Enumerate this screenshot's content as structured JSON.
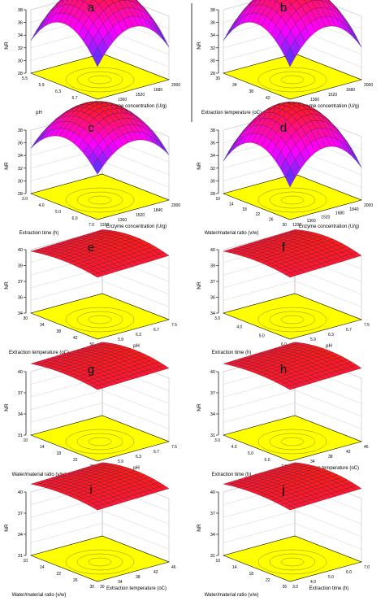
{
  "colors": {
    "surface_high": "#ff1a1a",
    "surface_low": "#3a3aff",
    "surface_mid": "#ff00ff",
    "base_plane": "#ffff00",
    "mesh_line": "#202020",
    "frame": "#000000"
  },
  "panels": [
    {
      "letter": "a",
      "zlabel": "NR",
      "xlabel": "pH",
      "ylabel": "Enzyme concentration (U/g)",
      "zticks": [
        "28",
        "30",
        "32",
        "34",
        "36",
        "38"
      ],
      "xticks": [
        "5.5",
        "5.9",
        "6.3",
        "6.7",
        "7.1"
      ],
      "yticks": [
        "1200",
        "1360",
        "1520",
        "1680",
        "2000"
      ]
    },
    {
      "letter": "b",
      "zlabel": "NR",
      "xlabel": "Extraction temperature (oC)",
      "ylabel": "Enzyme concentration (U/g)",
      "zticks": [
        "28",
        "30",
        "32",
        "34",
        "36",
        "38"
      ],
      "xticks": [
        "30",
        "34",
        "38",
        "42",
        "50"
      ],
      "yticks": [
        "1200",
        "1360",
        "1520",
        "1680",
        "2000"
      ]
    },
    {
      "letter": "c",
      "zlabel": "NR",
      "xlabel": "Extraction time (h)",
      "ylabel": "Enzyme concentration (U/g)",
      "zticks": [
        "28",
        "30",
        "32",
        "34",
        "36",
        "38"
      ],
      "xticks": [
        "3.0",
        "4.0",
        "5.0",
        "6.0",
        "7.0"
      ],
      "yticks": [
        "1200",
        "1360",
        "1520",
        "1840",
        "2000"
      ]
    },
    {
      "letter": "d",
      "zlabel": "NR",
      "xlabel": "Water/material ratio (v/w)",
      "ylabel": "Enzyme concentration (U/g)",
      "zticks": [
        "28",
        "30",
        "32",
        "34",
        "36",
        "38"
      ],
      "xticks": [
        "10",
        "14",
        "18",
        "22",
        "26",
        "30"
      ],
      "yticks": [
        "1200",
        "1360",
        "1520",
        "1680",
        "1840",
        "2000"
      ]
    },
    {
      "letter": "e",
      "zlabel": "NR",
      "xlabel": "Extraction temperature (oC)",
      "ylabel": "pH",
      "zticks": [
        "34",
        "36",
        "37",
        "39",
        "40"
      ],
      "xticks": [
        "30",
        "34",
        "38",
        "42",
        "50"
      ],
      "yticks": [
        "5.5",
        "5.9",
        "6.3",
        "6.7",
        "7.5"
      ]
    },
    {
      "letter": "f",
      "zlabel": "NR",
      "xlabel": "Extraction time (h)",
      "ylabel": "pH",
      "zticks": [
        "34",
        "36",
        "37",
        "39",
        "40"
      ],
      "xticks": [
        "3.0",
        "4.0",
        "5.0",
        "6.0"
      ],
      "yticks": [
        "5.5",
        "5.9",
        "6.3",
        "6.7",
        "7.5"
      ]
    },
    {
      "letter": "g",
      "zlabel": "NR",
      "xlabel": "Water/material ratio (v/w)",
      "ylabel": "pH",
      "zticks": [
        "31",
        "34",
        "37",
        "40"
      ],
      "xticks": [
        "10",
        "14",
        "18",
        "22",
        "30"
      ],
      "yticks": [
        "5.5",
        "5.9",
        "6.3",
        "6.7",
        "7.5"
      ]
    },
    {
      "letter": "h",
      "zlabel": "NR",
      "xlabel": "Extraction time (h)",
      "ylabel": "Extraction temperature (oC)",
      "zticks": [
        "31",
        "34",
        "37",
        "40"
      ],
      "xticks": [
        "3.0",
        "4.0",
        "5.0",
        "6.0",
        "7.0"
      ],
      "yticks": [
        "30",
        "34",
        "38",
        "42",
        "46"
      ]
    },
    {
      "letter": "i",
      "zlabel": "NR",
      "xlabel": "Water/material ratio (v/w)",
      "ylabel": "Extraction temperature (oC)",
      "zticks": [
        "31",
        "34",
        "37",
        "40"
      ],
      "xticks": [
        "10",
        "14",
        "22",
        "26",
        "30"
      ],
      "yticks": [
        "30",
        "34",
        "38",
        "42",
        "46"
      ]
    },
    {
      "letter": "j",
      "zlabel": "NR",
      "xlabel": "Water/material ratio (v/w)",
      "ylabel": "Extraction time (h)",
      "zticks": [
        "31",
        "34",
        "37",
        "40"
      ],
      "xticks": [
        "10",
        "14",
        "18",
        "22",
        "26"
      ],
      "yticks": [
        "3.0",
        "4.0",
        "5.0",
        "6.0",
        "7.0"
      ]
    }
  ],
  "chart_data": [
    {
      "type": "surface",
      "panel": "a",
      "zlabel": "NR",
      "xlabel": "pH",
      "ylabel": "Enzyme concentration (U/g)",
      "xlim": [
        5.5,
        7.1
      ],
      "ylim": [
        1200,
        2000
      ],
      "zlim": [
        28,
        38
      ],
      "z_min": 28,
      "z_max": 37.5,
      "optimum": [
        6.3,
        1600
      ],
      "shape": "dome"
    },
    {
      "type": "surface",
      "panel": "b",
      "zlabel": "NR",
      "xlabel": "Extraction temperature (oC)",
      "ylabel": "Enzyme concentration (U/g)",
      "xlim": [
        30,
        50
      ],
      "ylim": [
        1200,
        2000
      ],
      "zlim": [
        28,
        38
      ],
      "z_min": 28,
      "z_max": 37.5,
      "optimum": [
        40,
        1600
      ],
      "shape": "dome"
    },
    {
      "type": "surface",
      "panel": "c",
      "zlabel": "NR",
      "xlabel": "Extraction time (h)",
      "ylabel": "Enzyme concentration (U/g)",
      "xlim": [
        3,
        7
      ],
      "ylim": [
        1200,
        2000
      ],
      "zlim": [
        28,
        38
      ],
      "z_min": 30,
      "z_max": 37.5,
      "optimum": [
        5,
        1600
      ],
      "shape": "dome"
    },
    {
      "type": "surface",
      "panel": "d",
      "zlabel": "NR",
      "xlabel": "Water/material ratio (v/w)",
      "ylabel": "Enzyme concentration (U/g)",
      "xlim": [
        10,
        30
      ],
      "ylim": [
        1200,
        2000
      ],
      "zlim": [
        28,
        38
      ],
      "z_min": 28,
      "z_max": 37.5,
      "optimum": [
        20,
        1600
      ],
      "shape": "dome"
    },
    {
      "type": "surface",
      "panel": "e",
      "zlabel": "NR",
      "xlabel": "Extraction temperature (oC)",
      "ylabel": "pH",
      "xlim": [
        30,
        50
      ],
      "ylim": [
        5.5,
        7.5
      ],
      "zlim": [
        34,
        40
      ],
      "z_min": 36,
      "z_max": 37.5,
      "shape": "near-flat"
    },
    {
      "type": "surface",
      "panel": "f",
      "zlabel": "NR",
      "xlabel": "Extraction time (h)",
      "ylabel": "pH",
      "xlim": [
        3,
        7
      ],
      "ylim": [
        5.5,
        7.5
      ],
      "zlim": [
        34,
        40
      ],
      "z_min": 36,
      "z_max": 37.5,
      "shape": "near-flat"
    },
    {
      "type": "surface",
      "panel": "g",
      "zlabel": "NR",
      "xlabel": "Water/material ratio (v/w)",
      "ylabel": "pH",
      "xlim": [
        10,
        30
      ],
      "ylim": [
        5.5,
        7.5
      ],
      "zlim": [
        31,
        40
      ],
      "z_min": 35.5,
      "z_max": 37.5,
      "shape": "near-flat"
    },
    {
      "type": "surface",
      "panel": "h",
      "zlabel": "NR",
      "xlabel": "Extraction time (h)",
      "ylabel": "Extraction temperature (oC)",
      "xlim": [
        3,
        7
      ],
      "ylim": [
        30,
        50
      ],
      "zlim": [
        31,
        40
      ],
      "z_min": 35.5,
      "z_max": 37.5,
      "shape": "near-flat"
    },
    {
      "type": "surface",
      "panel": "i",
      "zlabel": "NR",
      "xlabel": "Water/material ratio (v/w)",
      "ylabel": "Extraction temperature (oC)",
      "xlim": [
        10,
        30
      ],
      "ylim": [
        30,
        50
      ],
      "zlim": [
        31,
        40
      ],
      "z_min": 35.5,
      "z_max": 37.5,
      "shape": "near-flat"
    },
    {
      "type": "surface",
      "panel": "j",
      "zlabel": "NR",
      "xlabel": "Water/material ratio (v/w)",
      "ylabel": "Extraction time (h)",
      "xlim": [
        10,
        30
      ],
      "ylim": [
        3,
        7
      ],
      "zlim": [
        31,
        40
      ],
      "z_min": 35.5,
      "z_max": 37.5,
      "shape": "near-flat"
    }
  ]
}
